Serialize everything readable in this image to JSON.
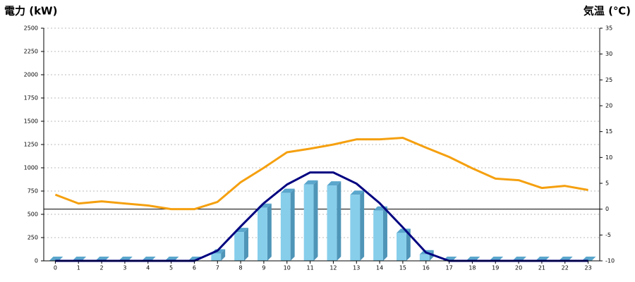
{
  "chart_data": {
    "type": "bar-line",
    "y_label": "電力 (kW)",
    "y2_label": "気温 (℃)",
    "categories": [
      "0",
      "1",
      "2",
      "3",
      "4",
      "5",
      "6",
      "7",
      "8",
      "9",
      "10",
      "11",
      "12",
      "13",
      "14",
      "15",
      "16",
      "17",
      "18",
      "19",
      "20",
      "21",
      "22",
      "23"
    ],
    "series": [
      {
        "type": "bar",
        "color": "#87ceeb",
        "values": [
          0,
          0,
          0,
          0,
          0,
          0,
          0,
          80,
          310,
          570,
          730,
          820,
          810,
          710,
          540,
          300,
          70,
          0,
          0,
          0,
          0,
          0,
          0,
          0
        ]
      },
      {
        "type": "line",
        "color": "#000080",
        "values": [
          0,
          0,
          0,
          0,
          0,
          0,
          0,
          110,
          370,
          620,
          820,
          950,
          950,
          830,
          620,
          360,
          90,
          0,
          0,
          0,
          0,
          0,
          0,
          0
        ]
      },
      {
        "type": "line",
        "color": "#f5a00f",
        "axis": "y2",
        "values": [
          2.8,
          1.1,
          1.5,
          1.1,
          0.7,
          0,
          0,
          1.4,
          5.2,
          8.0,
          11.0,
          11.7,
          12.5,
          13.5,
          13.5,
          13.8,
          11.9,
          10.1,
          7.9,
          5.9,
          5.6,
          4.1,
          4.5,
          3.7
        ]
      }
    ],
    "ylim": [
      0,
      2500
    ],
    "yticks": [
      0,
      250,
      500,
      750,
      1000,
      1250,
      1500,
      1750,
      2000,
      2250,
      2500
    ],
    "y2lim": [
      -10,
      35
    ],
    "y2ticks": [
      -10,
      -5,
      0,
      5,
      10,
      15,
      20,
      25,
      30,
      35
    ],
    "grid": true,
    "y2_zero_line": true,
    "y_label_color": "#1f5fa8",
    "y2_label_color": "#f07d1e"
  }
}
